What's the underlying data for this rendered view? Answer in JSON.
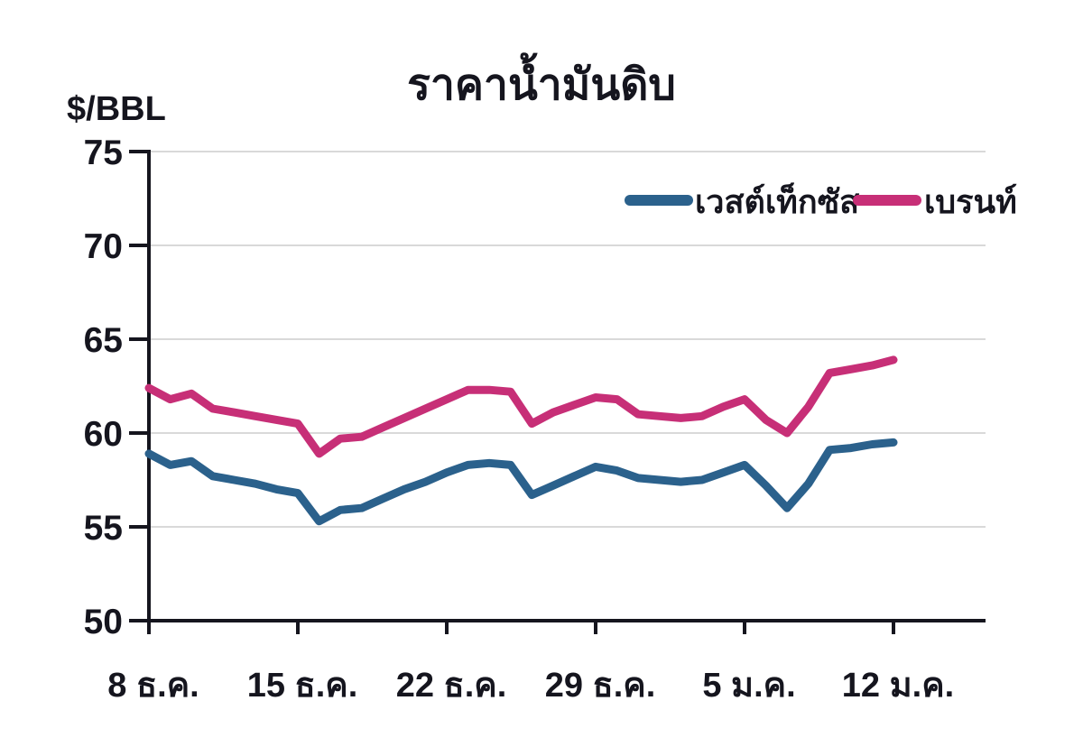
{
  "title": "ราคาน้ำมันดิบ",
  "chart_data": {
    "type": "line",
    "title": "ราคาน้ำมันดิบ",
    "xlabel": "",
    "ylabel": "$/BBL",
    "ylim": [
      50,
      75
    ],
    "y_ticks": [
      50,
      55,
      60,
      65,
      70,
      75
    ],
    "x_tick_labels": [
      "8 ธ.ค.",
      "15 ธ.ค.",
      "22 ธ.ค.",
      "29 ธ.ค.",
      "5 ม.ค.",
      "12 ม.ค."
    ],
    "x_tick_days": [
      0,
      7,
      14,
      21,
      28,
      35
    ],
    "grid": "horizontal-light-gray",
    "legend_position": "top-right-inside",
    "series": [
      {
        "key": "west-texas",
        "name": "เวสต์เท็กซัส",
        "color": "#2b618c",
        "values": [
          58.9,
          58.3,
          58.5,
          57.7,
          57.5,
          57.3,
          57.0,
          56.8,
          55.3,
          55.9,
          56.0,
          56.5,
          57.0,
          57.4,
          57.9,
          58.3,
          58.4,
          58.3,
          56.7,
          57.2,
          57.7,
          58.2,
          58.0,
          57.6,
          57.5,
          57.4,
          57.5,
          57.9,
          58.3,
          57.2,
          56.0,
          57.3,
          59.1,
          59.2,
          59.4,
          59.5
        ]
      },
      {
        "key": "brent",
        "name": "เบรนท์",
        "color": "#c72f77",
        "values": [
          62.4,
          61.8,
          62.1,
          61.3,
          61.1,
          60.9,
          60.7,
          60.5,
          58.9,
          59.7,
          59.8,
          60.3,
          60.8,
          61.3,
          61.8,
          62.3,
          62.3,
          62.2,
          60.5,
          61.1,
          61.5,
          61.9,
          61.8,
          61.0,
          60.9,
          60.8,
          60.9,
          61.4,
          61.8,
          60.7,
          60.0,
          61.4,
          63.2,
          63.4,
          63.6,
          63.9
        ]
      }
    ],
    "colors": {
      "axis": "#15151e",
      "grid": "#d9d9d9",
      "text": "#15151e"
    }
  }
}
